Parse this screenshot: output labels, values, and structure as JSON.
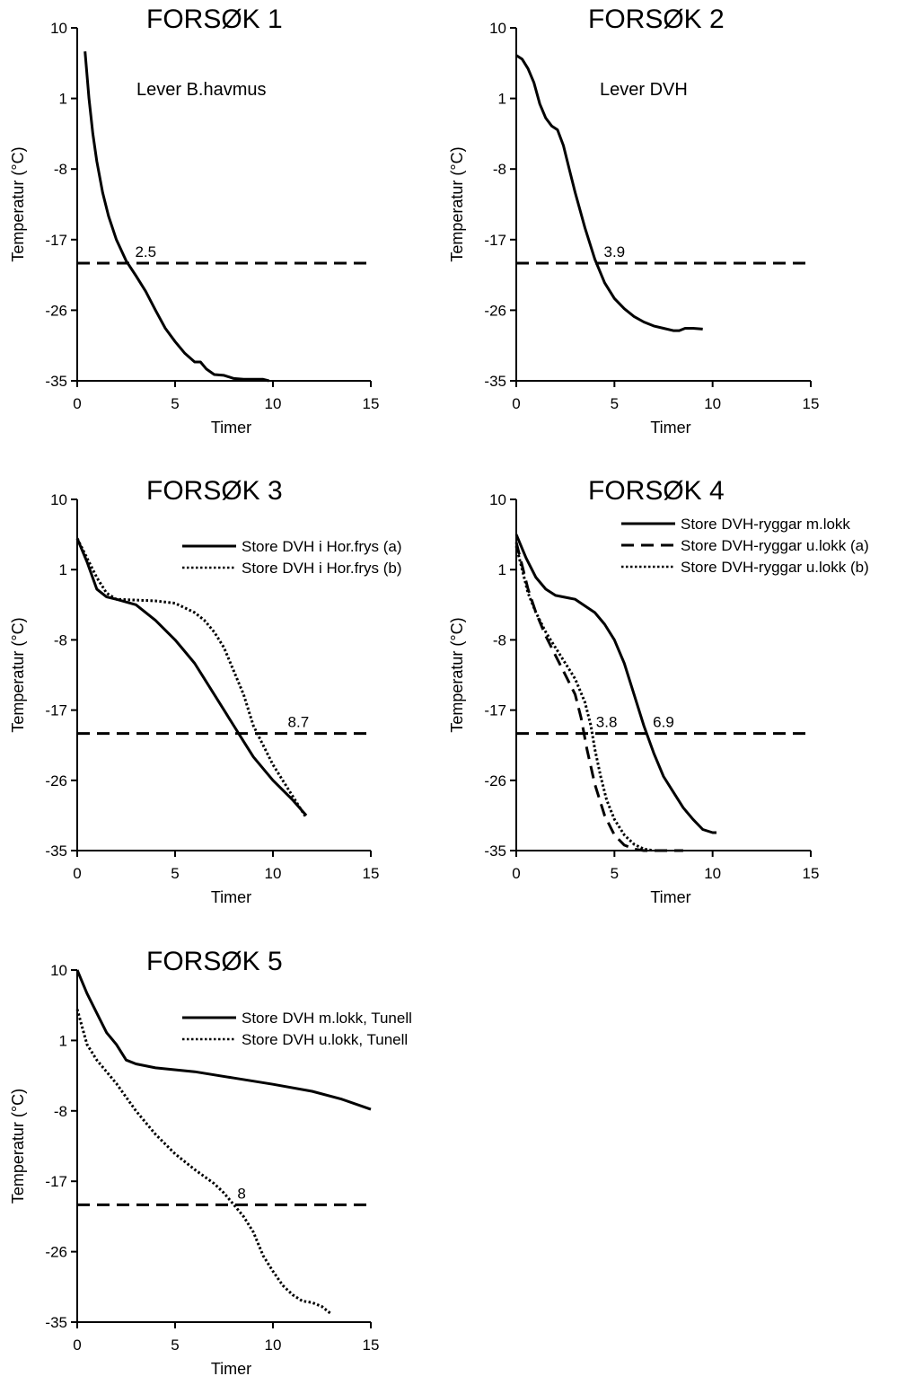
{
  "chart_data": [
    {
      "type": "line",
      "title": "FORSØK 1",
      "subtitle": "Lever B.havmus",
      "xlabel": "Timer",
      "ylabel": "Temperatur (°C)",
      "xlim": [
        0,
        15
      ],
      "ylim": [
        -35,
        10
      ],
      "xticks": [
        0,
        5,
        10,
        15
      ],
      "yticks": [
        -35,
        -26,
        -17,
        -8,
        1,
        10
      ],
      "grid": false,
      "reference_line": {
        "y": -20,
        "style": "dashed"
      },
      "annotations": [
        {
          "text": "2.5",
          "x": 3.5,
          "y": -19.2
        }
      ],
      "legend": {
        "position": "none"
      },
      "series": [
        {
          "style": "solid",
          "x": [
            0.4,
            0.6,
            0.8,
            1.0,
            1.3,
            1.6,
            2.0,
            2.5,
            3.0,
            3.5,
            4.0,
            4.5,
            5.0,
            5.5,
            6.0,
            6.3,
            6.6,
            7.0,
            7.5,
            8.0,
            8.5,
            9.0,
            9.5,
            9.8
          ],
          "y": [
            7.0,
            1.0,
            -3.5,
            -7.0,
            -11.0,
            -14.0,
            -17.0,
            -19.7,
            -21.6,
            -23.6,
            -26.0,
            -28.3,
            -30.0,
            -31.5,
            -32.6,
            -32.6,
            -33.5,
            -34.2,
            -34.3,
            -34.7,
            -34.8,
            -34.8,
            -34.8,
            -35.0
          ]
        }
      ]
    },
    {
      "type": "line",
      "title": "FORSØK 2",
      "subtitle": "Lever DVH",
      "xlabel": "Timer",
      "ylabel": "Temperatur (°C)",
      "xlim": [
        0,
        15
      ],
      "ylim": [
        -35,
        10
      ],
      "xticks": [
        0,
        5,
        10,
        15
      ],
      "yticks": [
        -35,
        -26,
        -17,
        -8,
        1,
        10
      ],
      "grid": false,
      "reference_line": {
        "y": -20,
        "style": "dashed"
      },
      "annotations": [
        {
          "text": "3.9",
          "x": 5.0,
          "y": -19.2
        }
      ],
      "legend": {
        "position": "none"
      },
      "series": [
        {
          "style": "solid",
          "x": [
            0.0,
            0.3,
            0.6,
            0.9,
            1.2,
            1.5,
            1.8,
            2.1,
            2.4,
            2.7,
            3.0,
            3.5,
            4.0,
            4.5,
            5.0,
            5.5,
            6.0,
            6.5,
            7.0,
            7.5,
            8.0,
            8.3,
            8.6,
            9.0,
            9.5
          ],
          "y": [
            6.5,
            6.0,
            4.8,
            3.0,
            0.3,
            -1.5,
            -2.5,
            -3.0,
            -5.0,
            -8.0,
            -11.0,
            -15.5,
            -19.5,
            -22.5,
            -24.5,
            -25.8,
            -26.8,
            -27.5,
            -28.0,
            -28.3,
            -28.6,
            -28.6,
            -28.3,
            -28.3,
            -28.4
          ]
        }
      ]
    },
    {
      "type": "line",
      "title": "FORSØK 3",
      "xlabel": "Timer",
      "ylabel": "Temperatur (°C)",
      "xlim": [
        0,
        15
      ],
      "ylim": [
        -35,
        10
      ],
      "xticks": [
        0,
        5,
        10,
        15
      ],
      "yticks": [
        -35,
        -26,
        -17,
        -8,
        1,
        10
      ],
      "grid": false,
      "reference_line": {
        "y": -20,
        "style": "dashed"
      },
      "annotations": [
        {
          "text": "8.7",
          "x": 11.3,
          "y": -19.2
        }
      ],
      "legend": {
        "position": "top-right"
      },
      "series": [
        {
          "name": "Store DVH i Hor.frys (a)",
          "style": "solid",
          "x": [
            0.0,
            0.5,
            1.0,
            1.5,
            2.0,
            3.0,
            4.0,
            5.0,
            5.5,
            6.0,
            6.5,
            7.0,
            7.5,
            8.0,
            8.5,
            9.0,
            10.0,
            11.0,
            11.7
          ],
          "y": [
            5.0,
            2.0,
            -1.5,
            -2.5,
            -2.8,
            -3.5,
            -5.5,
            -8.0,
            -9.5,
            -11.0,
            -13.0,
            -15.0,
            -17.0,
            -19.0,
            -21.0,
            -23.0,
            -26.0,
            -28.5,
            -30.5
          ]
        },
        {
          "name": "Store DVH i Hor.frys (b)",
          "style": "dotted",
          "x": [
            0.0,
            0.5,
            1.0,
            1.5,
            2.0,
            3.0,
            4.0,
            5.0,
            6.0,
            6.5,
            7.0,
            7.5,
            8.0,
            8.5,
            9.0,
            9.5,
            10.0,
            11.0,
            11.7
          ],
          "y": [
            5.0,
            2.5,
            0.0,
            -2.0,
            -2.8,
            -2.9,
            -3.0,
            -3.3,
            -4.5,
            -5.5,
            -7.0,
            -9.0,
            -12.0,
            -15.0,
            -19.0,
            -21.5,
            -24.0,
            -28.0,
            -30.8
          ]
        }
      ]
    },
    {
      "type": "line",
      "title": "FORSØK 4",
      "xlabel": "Timer",
      "ylabel": "Temperatur (°C)",
      "xlim": [
        0,
        15
      ],
      "ylim": [
        -35,
        10
      ],
      "xticks": [
        0,
        5,
        10,
        15
      ],
      "yticks": [
        -35,
        -26,
        -17,
        -8,
        1,
        10
      ],
      "grid": false,
      "reference_line": {
        "y": -20,
        "style": "dashed"
      },
      "annotations": [
        {
          "text": "3.8",
          "x": 4.6,
          "y": -19.2
        },
        {
          "text": "6.9",
          "x": 7.5,
          "y": -19.2
        }
      ],
      "legend": {
        "position": "top-right"
      },
      "series": [
        {
          "name": "Store DVH-ryggar m.lokk",
          "style": "solid",
          "x": [
            0.0,
            0.5,
            1.0,
            1.5,
            2.0,
            3.0,
            4.0,
            4.5,
            5.0,
            5.5,
            6.0,
            6.5,
            7.0,
            7.5,
            8.0,
            8.5,
            9.0,
            9.5,
            10.0,
            10.2
          ],
          "y": [
            5.5,
            2.5,
            0.0,
            -1.5,
            -2.3,
            -2.8,
            -4.5,
            -6.0,
            -8.0,
            -11.0,
            -15.0,
            -19.0,
            -22.5,
            -25.5,
            -27.5,
            -29.5,
            -31.0,
            -32.3,
            -32.7,
            -32.7
          ]
        },
        {
          "name": "Store DVH-ryggar u.lokk (a)",
          "style": "dashed",
          "x": [
            0.0,
            0.3,
            0.6,
            1.0,
            1.5,
            2.0,
            2.5,
            3.0,
            3.3,
            3.6,
            4.0,
            4.5,
            5.0,
            5.5,
            6.0,
            6.5,
            7.5,
            8.5
          ],
          "y": [
            4.5,
            1.5,
            -1.5,
            -4.5,
            -7.5,
            -10.0,
            -12.5,
            -15.0,
            -18.0,
            -22.0,
            -26.5,
            -30.5,
            -33.0,
            -34.3,
            -34.8,
            -35.0,
            -35.0,
            -35.0
          ]
        },
        {
          "name": "Store DVH-ryggar u.lokk (b)",
          "style": "dotted",
          "x": [
            0.0,
            0.3,
            0.6,
            1.0,
            1.5,
            2.0,
            2.5,
            3.0,
            3.5,
            3.8,
            4.0,
            4.3,
            4.6,
            5.0,
            5.5,
            6.0,
            6.5,
            7.0
          ],
          "y": [
            4.0,
            1.0,
            -2.0,
            -4.5,
            -7.0,
            -9.0,
            -11.0,
            -13.0,
            -16.0,
            -19.0,
            -22.0,
            -25.5,
            -28.5,
            -31.0,
            -33.0,
            -34.2,
            -34.8,
            -35.0
          ]
        }
      ]
    },
    {
      "type": "line",
      "title": "FORSØK 5",
      "xlabel": "Timer",
      "ylabel": "Temperatur (°C)",
      "xlim": [
        0,
        15
      ],
      "ylim": [
        -35,
        10
      ],
      "xticks": [
        0,
        5,
        10,
        15
      ],
      "yticks": [
        -35,
        -26,
        -17,
        -8,
        1,
        10
      ],
      "grid": false,
      "reference_line": {
        "y": -20,
        "style": "dashed"
      },
      "annotations": [
        {
          "text": "8",
          "x": 8.4,
          "y": -19.2
        }
      ],
      "legend": {
        "position": "top-right"
      },
      "series": [
        {
          "name": "Store DVH m.lokk, Tunell",
          "style": "solid",
          "x": [
            0.0,
            0.5,
            1.0,
            1.5,
            2.0,
            2.5,
            3.0,
            4.0,
            6.0,
            8.0,
            10.0,
            12.0,
            13.5,
            15.0
          ],
          "y": [
            10.0,
            7.0,
            4.5,
            2.0,
            0.5,
            -1.5,
            -2.0,
            -2.5,
            -3.0,
            -3.8,
            -4.6,
            -5.5,
            -6.5,
            -7.8
          ]
        },
        {
          "name": "Store DVH u.lokk, Tunell",
          "style": "dotted",
          "x": [
            0.0,
            0.5,
            1.0,
            2.0,
            3.0,
            4.0,
            5.0,
            6.0,
            7.0,
            7.5,
            8.0,
            8.5,
            9.0,
            9.5,
            10.0,
            10.5,
            11.0,
            11.5,
            12.0,
            12.5,
            13.0
          ],
          "y": [
            5.0,
            0.5,
            -1.5,
            -4.5,
            -8.0,
            -11.0,
            -13.5,
            -15.5,
            -17.3,
            -18.5,
            -20.0,
            -21.5,
            -23.5,
            -26.5,
            -28.5,
            -30.3,
            -31.5,
            -32.3,
            -32.5,
            -33.0,
            -34.0
          ]
        }
      ]
    }
  ]
}
